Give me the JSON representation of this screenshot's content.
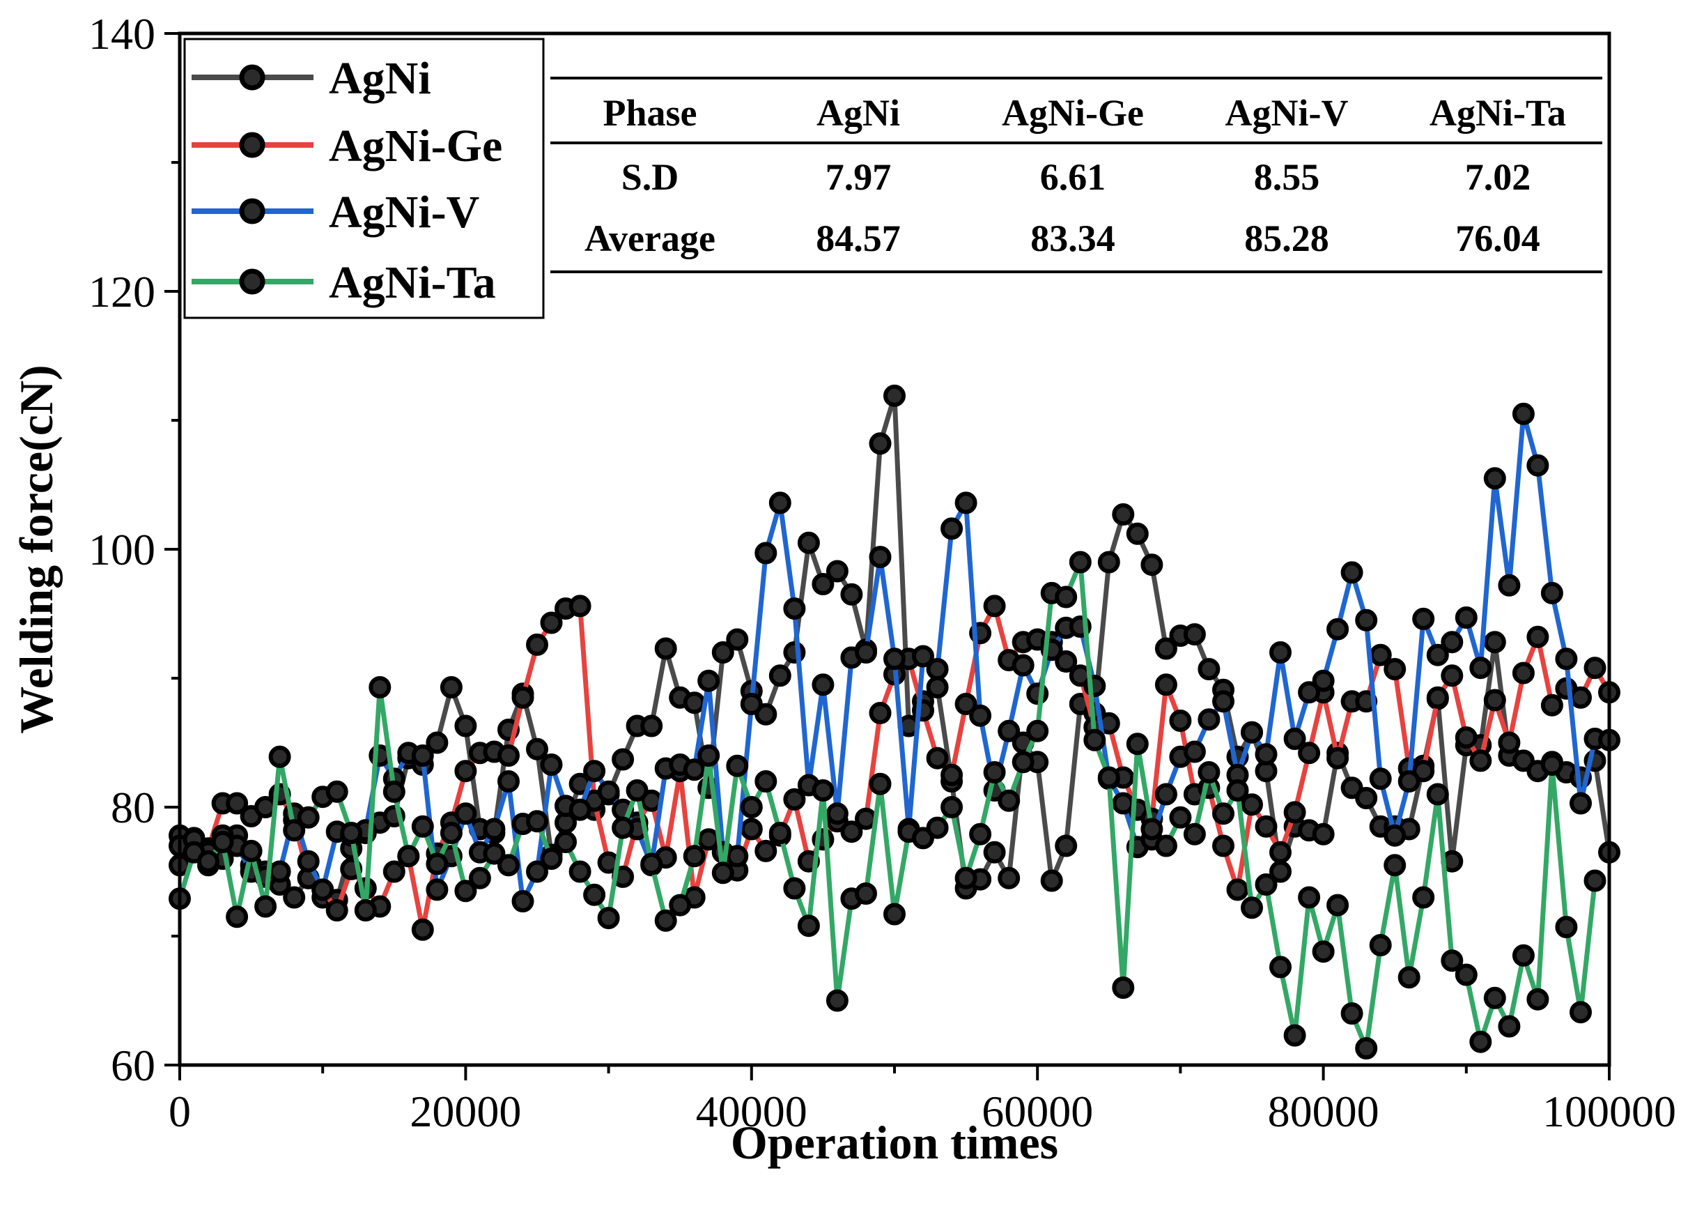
{
  "chart_data": {
    "type": "line",
    "xlabel": "Operation times",
    "ylabel": "Welding force(cN)",
    "xlim": [
      0,
      100000
    ],
    "ylim": [
      60,
      140
    ],
    "xticks": [
      0,
      20000,
      40000,
      60000,
      80000,
      100000
    ],
    "yticks": [
      60,
      80,
      100,
      120,
      140
    ],
    "x_step": 1000,
    "legend_position": "top-left",
    "colors": {
      "AgNi": "#4a4a4a",
      "AgNi-Ge": "#e8423f",
      "AgNi-V": "#1f66d1",
      "AgNi-Ta": "#33a866",
      "marker_fill": "#2b2b2b",
      "marker_edge": "#000000"
    },
    "table": {
      "headers": [
        "Phase",
        "AgNi",
        "AgNi-Ge",
        "AgNi-V",
        "AgNi-Ta"
      ],
      "rows": [
        [
          "S.D",
          "7.97",
          "6.61",
          "8.55",
          "7.02"
        ],
        [
          "Average",
          "84.57",
          "83.34",
          "85.28",
          "76.04"
        ]
      ]
    },
    "series": [
      {
        "name": "AgNi",
        "values": [
          75.5,
          77.6,
          75.5,
          76,
          77.8,
          75.5,
          75,
          74,
          73,
          74.5,
          73,
          72.8,
          76.8,
          78,
          78.8,
          79.3,
          83.8,
          83.3,
          85,
          89.3,
          86.3,
          78.3,
          78,
          86,
          88.8,
          84.5,
          76.3,
          78.8,
          81.8,
          79.8,
          81,
          83.7,
          86.3,
          86.3,
          92.3,
          88.5,
          88.1,
          81.5,
          92,
          93,
          89,
          87.2,
          90.2,
          92,
          100.5,
          97.3,
          98.3,
          96.5,
          92.2,
          108.2,
          111.9,
          86.3,
          88.2,
          89.3,
          82,
          73.7,
          74.4,
          76.5,
          74.5,
          85,
          83.5,
          74.3,
          77,
          88,
          87.3,
          99,
          102.7,
          101.2,
          98.8,
          92.3,
          93.3,
          93.4,
          90.7,
          89.1,
          83.9,
          85.8,
          82.8,
          75,
          78.5,
          78.2,
          77.9,
          84.2,
          81.5,
          80.7,
          78.5,
          78.5,
          78.3,
          83.2,
          88.4,
          75.8,
          84.8,
          84.8,
          92.8,
          84,
          83.6,
          82.8,
          83.5,
          82.7,
          82.3,
          83.6,
          76.5
        ]
      },
      {
        "name": "AgNi-Ge",
        "values": [
          77.8,
          77.4,
          76.8,
          80.3,
          80.3,
          79.3,
          80,
          81,
          79,
          74.5,
          73.6,
          72,
          75.2,
          73.7,
          72.3,
          75,
          76.2,
          70.5,
          76.4,
          78.8,
          82.8,
          84.2,
          84.3,
          84,
          88.5,
          92.6,
          94.3,
          95.4,
          95.6,
          80.5,
          75.7,
          74.6,
          78.8,
          80.5,
          76.1,
          82.8,
          73,
          77.5,
          76.5,
          75.1,
          78.3,
          76.6,
          77.8,
          80.6,
          75.8,
          77.5,
          78.9,
          78.1,
          79.1,
          87.3,
          90.3,
          91.5,
          87.5,
          83.8,
          82.5,
          88,
          93.5,
          95.6,
          91.4,
          92.8,
          93,
          92.8,
          91.3,
          90.2,
          86.2,
          86.5,
          82.3,
          79.8,
          79.1,
          89.5,
          86.7,
          81,
          81.5,
          77,
          73.6,
          80.2,
          78.5,
          76.5,
          79.6,
          84.2,
          88.9,
          83.8,
          88.2,
          88.2,
          91.8,
          90.7,
          83,
          82.8,
          88.5,
          90.2,
          85.4,
          83.6,
          88.3,
          85,
          90.4,
          93.2,
          87.9,
          89.2,
          88.5,
          90.8,
          88.9
        ]
      },
      {
        "name": "AgNi-V",
        "values": [
          77,
          77.5,
          76.5,
          77.8,
          77,
          75,
          74.6,
          75,
          79.5,
          75.8,
          73.6,
          78.1,
          77.8,
          78.2,
          84,
          82.2,
          84.2,
          84,
          73.6,
          76.2,
          79.5,
          76.5,
          78.3,
          82,
          72.7,
          75,
          83.3,
          80.1,
          79.8,
          82.8,
          81.2,
          79.8,
          78.3,
          75.5,
          83,
          83.3,
          82.9,
          89.8,
          76.5,
          76.2,
          88,
          99.7,
          103.6,
          95.4,
          81.7,
          89.5,
          79.5,
          91.6,
          92,
          99.4,
          91.5,
          78.3,
          91.7,
          90.7,
          101.6,
          103.6,
          87.1,
          81.3,
          85.9,
          91,
          88.8,
          92.2,
          93.9,
          94,
          89.4,
          82.2,
          80.3,
          76.9,
          77.5,
          81,
          83.9,
          84.3,
          86.8,
          88.2,
          82.5,
          85.8,
          84.1,
          92,
          85.3,
          88.9,
          89.8,
          93.8,
          98.2,
          94.5,
          82.2,
          77.8,
          82,
          94.6,
          91.8,
          92.8,
          94.7,
          90.8,
          105.5,
          97.2,
          110.5,
          106.5,
          96.6,
          91.5,
          80.3,
          85.3,
          85.2
        ]
      },
      {
        "name": "AgNi-Ta",
        "values": [
          72.9,
          76.5,
          75.8,
          77.3,
          71.5,
          76.6,
          72.3,
          83.9,
          78.2,
          79.2,
          80.8,
          81.2,
          78,
          72,
          89.3,
          81.2,
          76.2,
          78.5,
          75.6,
          78,
          73.5,
          74.5,
          76.4,
          75.5,
          78.7,
          78.9,
          76,
          77.3,
          75,
          73.2,
          71.4,
          78.4,
          81.3,
          75.6,
          71.2,
          72.4,
          76.2,
          84,
          74.9,
          83.2,
          80,
          82,
          78,
          73.7,
          70.8,
          81.3,
          65,
          72.9,
          73.3,
          81.8,
          71.7,
          78.1,
          77.6,
          78.4,
          80,
          74.5,
          77.9,
          82.7,
          80.5,
          83.5,
          85.9,
          96.6,
          96.3,
          99,
          85.2,
          82.3,
          66,
          84.9,
          78.3,
          77,
          79.2,
          77.9,
          82.7,
          79.5,
          81.3,
          72.2,
          74,
          67.6,
          62.3,
          73,
          68.8,
          72.4,
          64,
          61.3,
          69.3,
          75.5,
          66.8,
          73,
          81,
          68.1,
          67,
          61.8,
          65.2,
          63,
          68.5,
          65.1,
          83.3,
          70.7,
          64.1,
          74.3
        ]
      }
    ]
  }
}
